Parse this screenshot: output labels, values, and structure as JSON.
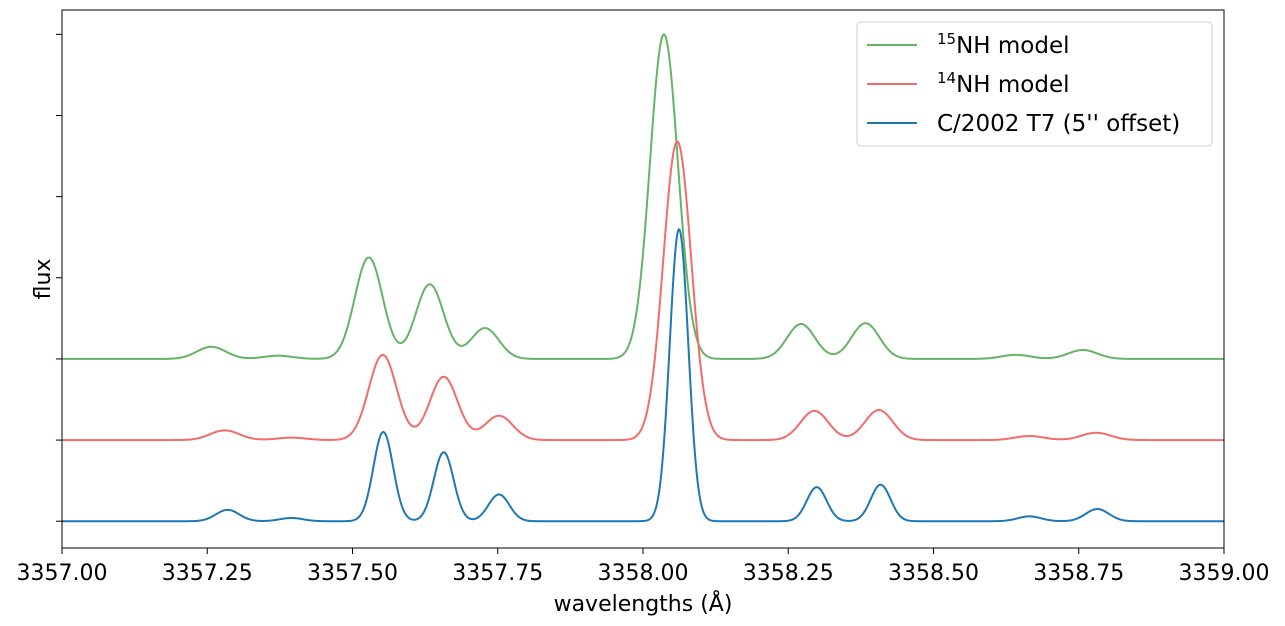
{
  "chart_data": {
    "type": "line",
    "title": "",
    "xlabel": "wavelengths (Å)",
    "ylabel": "flux",
    "xlim": [
      3357.0,
      3359.0
    ],
    "ylim": [
      -0.33,
      6.3
    ],
    "y_ticklabels_shown": false,
    "x_ticks": [
      3357.0,
      3357.25,
      3357.5,
      3357.75,
      3358.0,
      3358.25,
      3358.5,
      3358.75,
      3359.0
    ],
    "x_ticklabels": [
      "3357.00",
      "3357.25",
      "3357.50",
      "3357.75",
      "3358.00",
      "3358.25",
      "3358.50",
      "3358.75",
      "3359.00"
    ],
    "y_ticks": [
      0,
      1,
      2,
      3,
      4,
      5,
      6
    ],
    "grid": false,
    "legend_position": "top-right",
    "series": [
      {
        "sup": "15",
        "name": "NH model",
        "color": "#65b465",
        "baseline": 2.0,
        "peaks": [
          {
            "x": 3357.257,
            "h": 0.15,
            "w": 0.025
          },
          {
            "x": 3357.372,
            "h": 0.04,
            "w": 0.025
          },
          {
            "x": 3357.528,
            "h": 1.25,
            "w": 0.024
          },
          {
            "x": 3357.633,
            "h": 0.92,
            "w": 0.024
          },
          {
            "x": 3357.728,
            "h": 0.38,
            "w": 0.024
          },
          {
            "x": 3358.036,
            "h": 4.0,
            "w": 0.024
          },
          {
            "x": 3358.272,
            "h": 0.43,
            "w": 0.024
          },
          {
            "x": 3358.383,
            "h": 0.44,
            "w": 0.024
          },
          {
            "x": 3358.642,
            "h": 0.05,
            "w": 0.025
          },
          {
            "x": 3358.757,
            "h": 0.11,
            "w": 0.025
          }
        ]
      },
      {
        "sup": "14",
        "name": "NH model",
        "color": "#f36b6b",
        "baseline": 1.0,
        "peaks": [
          {
            "x": 3357.28,
            "h": 0.12,
            "w": 0.025
          },
          {
            "x": 3357.395,
            "h": 0.03,
            "w": 0.025
          },
          {
            "x": 3357.552,
            "h": 1.05,
            "w": 0.024
          },
          {
            "x": 3357.657,
            "h": 0.78,
            "w": 0.024
          },
          {
            "x": 3357.752,
            "h": 0.3,
            "w": 0.024
          },
          {
            "x": 3358.059,
            "h": 3.68,
            "w": 0.024
          },
          {
            "x": 3358.295,
            "h": 0.36,
            "w": 0.024
          },
          {
            "x": 3358.406,
            "h": 0.37,
            "w": 0.024
          },
          {
            "x": 3358.665,
            "h": 0.05,
            "w": 0.025
          },
          {
            "x": 3358.78,
            "h": 0.09,
            "w": 0.025
          }
        ]
      },
      {
        "sup": "",
        "name": "C/2002 T7 (5'' offset)",
        "color": "#1f77b4",
        "baseline": 0.0,
        "peaks": [
          {
            "x": 3357.285,
            "h": 0.14,
            "w": 0.02
          },
          {
            "x": 3357.395,
            "h": 0.04,
            "w": 0.02
          },
          {
            "x": 3357.553,
            "h": 1.1,
            "w": 0.017
          },
          {
            "x": 3357.657,
            "h": 0.85,
            "w": 0.017
          },
          {
            "x": 3357.752,
            "h": 0.33,
            "w": 0.018
          },
          {
            "x": 3358.062,
            "h": 3.6,
            "w": 0.016
          },
          {
            "x": 3358.299,
            "h": 0.42,
            "w": 0.017
          },
          {
            "x": 3358.409,
            "h": 0.45,
            "w": 0.017
          },
          {
            "x": 3358.665,
            "h": 0.06,
            "w": 0.02
          },
          {
            "x": 3358.782,
            "h": 0.15,
            "w": 0.02
          }
        ]
      }
    ]
  }
}
